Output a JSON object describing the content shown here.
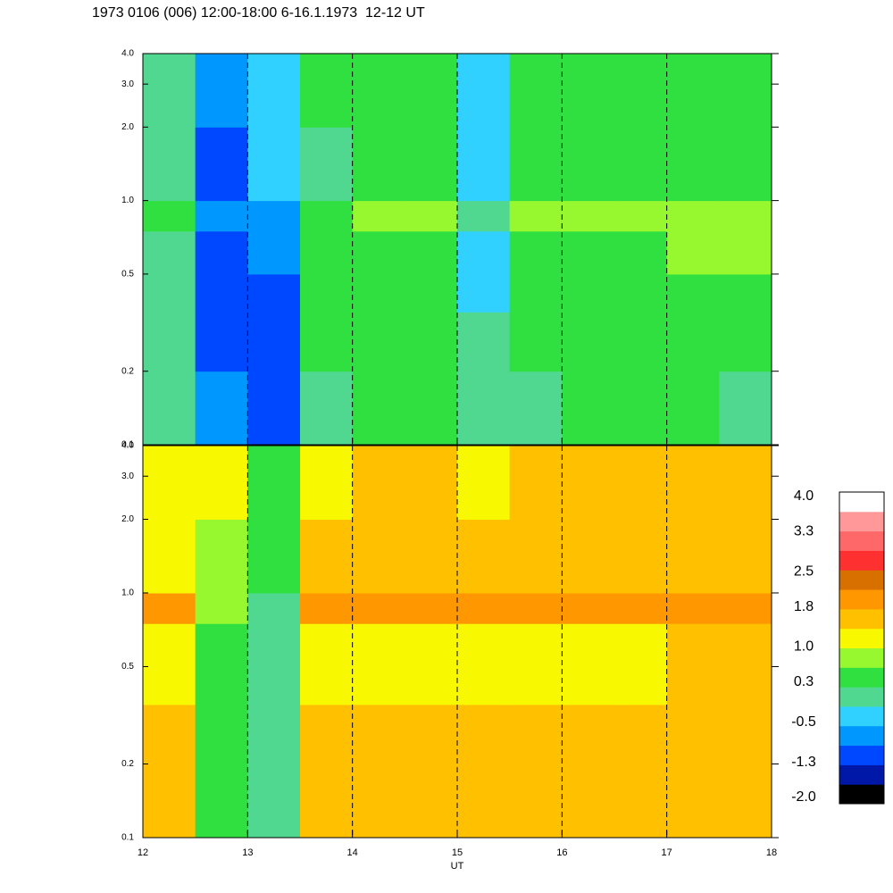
{
  "chart_data": [
    {
      "type": "heatmap",
      "title": "1973 0106 (006) 12:00-18:00 6-16.1.1973  12-12 UT",
      "x": [
        12,
        12.5,
        13,
        13.5,
        14,
        14.5,
        15,
        15.5,
        16,
        16.5,
        17,
        17.5,
        18
      ],
      "y": [
        0.1,
        0.2,
        0.35,
        0.5,
        0.75,
        1,
        2,
        4
      ],
      "z": [
        [
          0,
          -0.8,
          -1.2,
          0.2,
          0.3,
          0.3,
          0,
          0,
          0.3,
          0.3,
          0.3,
          0.2
        ],
        [
          0.1,
          -0.9,
          -1,
          0.3,
          0.3,
          0.3,
          0,
          0.3,
          0.4,
          0.3,
          0.3,
          0.4
        ],
        [
          0.1,
          -1,
          -1,
          0.3,
          0.4,
          0.4,
          -0.2,
          0.4,
          0.5,
          0.5,
          0.5,
          0.5
        ],
        [
          0.2,
          -0.9,
          -0.8,
          0.5,
          0.5,
          0.5,
          -0.3,
          0.5,
          0.6,
          0.6,
          0.7,
          0.7
        ],
        [
          0.3,
          -0.7,
          -0.6,
          0.6,
          0.7,
          0.7,
          0.2,
          0.7,
          0.7,
          0.7,
          0.7,
          0.7
        ],
        [
          0,
          -0.9,
          -0.5,
          0.2,
          0.3,
          0.3,
          -0.5,
          0.3,
          0.4,
          0.4,
          0.3,
          0.3
        ],
        [
          0.1,
          -0.7,
          -0.3,
          0.3,
          0.4,
          0.4,
          -0.2,
          0.4,
          0.5,
          0.5,
          0.4,
          0.3
        ]
      ],
      "xlim": [
        12,
        18
      ],
      "xticks": [
        12,
        13,
        14,
        15,
        16,
        17,
        18
      ],
      "ylim": [
        0.1,
        4
      ],
      "log_y": true,
      "yticks": [
        0.1,
        0.2,
        0.5,
        {
          "value": 1,
          "label": "1.0"
        },
        {
          "value": 2,
          "label": "2.0"
        },
        {
          "value": 3,
          "label": "3.0"
        },
        {
          "value": 4,
          "label": "4.0"
        }
      ],
      "grid": true
    },
    {
      "type": "heatmap",
      "xlabel": "UT",
      "x": [
        12,
        12.5,
        13,
        13.5,
        14,
        14.5,
        15,
        15.5,
        16,
        16.5,
        17,
        17.5,
        18
      ],
      "y": [
        0.1,
        0.2,
        0.35,
        0.5,
        0.75,
        1,
        2,
        4
      ],
      "z": [
        [
          1.6,
          0.4,
          0.2,
          1.6,
          1.5,
          1.5,
          1.5,
          1.6,
          1.5,
          1.5,
          1.5,
          1.6
        ],
        [
          1.4,
          0.5,
          0.1,
          1.5,
          1.4,
          1.4,
          1.4,
          1.5,
          1.5,
          1.4,
          1.5,
          1.6
        ],
        [
          1.2,
          0.6,
          0,
          1.2,
          1.2,
          1.2,
          1.2,
          1.3,
          1.3,
          1.3,
          1.6,
          1.7
        ],
        [
          1.1,
          0.6,
          0,
          1.1,
          1.1,
          1.1,
          1.1,
          1.2,
          1.2,
          1.2,
          1.5,
          1.6
        ],
        [
          2,
          0.7,
          0.2,
          2,
          2,
          2,
          2,
          2,
          2,
          2,
          2,
          2.1
        ],
        [
          1.3,
          0.8,
          0.3,
          1.4,
          1.4,
          1.4,
          1.4,
          1.4,
          1.4,
          1.4,
          1.4,
          1.4
        ],
        [
          1.3,
          1,
          0.5,
          1.3,
          1.4,
          1.4,
          1.3,
          1.4,
          1.4,
          1.4,
          1.4,
          1.4
        ]
      ],
      "xlim": [
        12,
        18
      ],
      "xticks": [
        12,
        13,
        14,
        15,
        16,
        17,
        18
      ],
      "ylim": [
        0.1,
        4
      ],
      "log_y": true,
      "yticks": [
        0.1,
        0.2,
        0.5,
        {
          "value": 1,
          "label": "1.0"
        },
        {
          "value": 2,
          "label": "2.0"
        },
        {
          "value": 3,
          "label": "3.0"
        },
        {
          "value": 4,
          "label": "4.0"
        }
      ],
      "grid": true,
      "colorbar": {
        "clim": [
          -2,
          4
        ],
        "colors": [
          "#000000",
          "#0018a8",
          "#0048ff",
          "#0098ff",
          "#30d0ff",
          "#50d890",
          "#30e040",
          "#98f830",
          "#f8f800",
          "#ffc000",
          "#ff9800",
          "#d87000",
          "#ff3030",
          "#ff6868",
          "#ff9898",
          "#ffffff"
        ],
        "ticks": [
          {
            "value": 4,
            "label": "4.0"
          },
          3.3,
          2.5,
          1.8,
          {
            "value": 1,
            "label": "1.0"
          },
          0.3,
          -0.5,
          -1.3,
          {
            "value": -2,
            "label": "-2.0"
          }
        ]
      }
    }
  ]
}
